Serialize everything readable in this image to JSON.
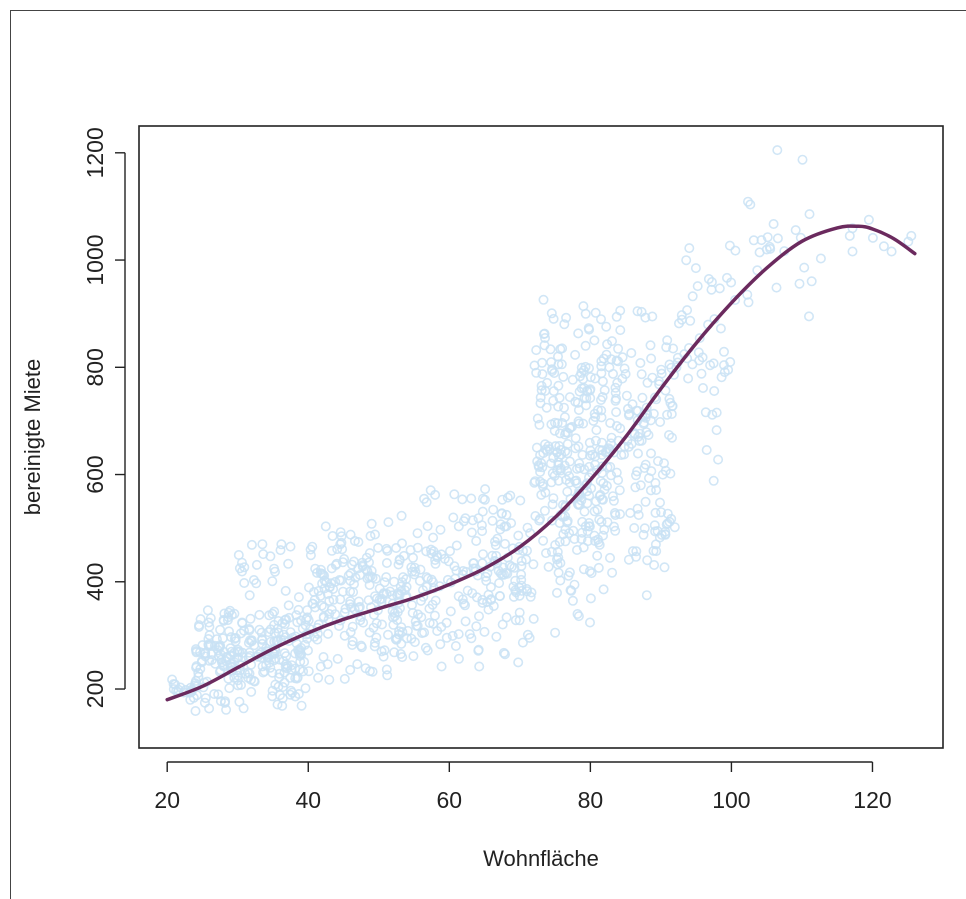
{
  "chart_data": {
    "type": "scatter",
    "xlabel": "Wohnfläche",
    "ylabel": "bereinigte Miete",
    "xlim": [
      16,
      130
    ],
    "ylim": [
      90,
      1250
    ],
    "xticks": [
      20,
      40,
      60,
      80,
      100,
      120
    ],
    "yticks": [
      200,
      400,
      600,
      800,
      1000,
      1200
    ],
    "colors": {
      "points": "#c9e2f5",
      "curve": "#6b2a5e",
      "axis": "#222222"
    },
    "scatter_clusters": [
      {
        "x": [
          20,
          24
        ],
        "y": [
          170,
          230
        ],
        "n": 20
      },
      {
        "x": [
          24,
          40
        ],
        "y": [
          150,
          380
        ],
        "n": 260
      },
      {
        "x": [
          30,
          38
        ],
        "y": [
          380,
          480
        ],
        "n": 20
      },
      {
        "x": [
          40,
          56
        ],
        "y": [
          200,
          540
        ],
        "n": 230
      },
      {
        "x": [
          56,
          72
        ],
        "y": [
          230,
          600
        ],
        "n": 190
      },
      {
        "x": [
          72,
          82
        ],
        "y": [
          300,
          940
        ],
        "n": 280
      },
      {
        "x": [
          82,
          92
        ],
        "y": [
          380,
          940
        ],
        "n": 170
      },
      {
        "x": [
          92,
          100
        ],
        "y": [
          560,
          1080
        ],
        "n": 50
      },
      {
        "x": [
          100,
          112
        ],
        "y": [
          850,
          1210
        ],
        "n": 25
      },
      {
        "x": [
          112,
          126
        ],
        "y": [
          990,
          1080
        ],
        "n": 8
      }
    ],
    "scatter_outliers": [
      {
        "x": 106.5,
        "y": 1205
      },
      {
        "x": 119.5,
        "y": 1075
      },
      {
        "x": 125.5,
        "y": 1045
      },
      {
        "x": 33.5,
        "y": 470
      },
      {
        "x": 88,
        "y": 375
      },
      {
        "x": 111,
        "y": 895
      },
      {
        "x": 75,
        "y": 305
      }
    ],
    "smooth_curve": {
      "x": [
        20,
        25,
        30,
        35,
        40,
        45,
        50,
        55,
        60,
        65,
        70,
        75,
        80,
        85,
        90,
        95,
        100,
        105,
        110,
        115,
        118,
        120,
        123,
        126
      ],
      "y": [
        180,
        205,
        240,
        275,
        305,
        330,
        350,
        370,
        395,
        425,
        465,
        520,
        590,
        670,
        760,
        845,
        920,
        985,
        1035,
        1060,
        1063,
        1058,
        1040,
        1012
      ]
    }
  }
}
